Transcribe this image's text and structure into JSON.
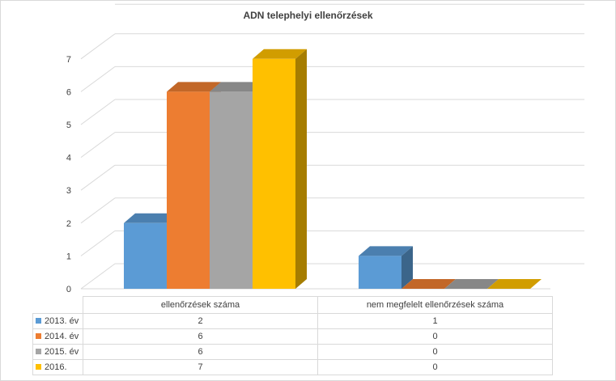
{
  "chart_data": {
    "type": "bar",
    "title": "ADN telephelyi ellenőrzések",
    "categories": [
      "ellenőrzések száma",
      "nem megfelelt ellenőrzések száma"
    ],
    "series": [
      {
        "name": "2013. év",
        "values": [
          2,
          1
        ],
        "color": "#5b9bd5"
      },
      {
        "name": "2014. év",
        "values": [
          6,
          0
        ],
        "color": "#ed7d31"
      },
      {
        "name": "2015. év",
        "values": [
          6,
          0
        ],
        "color": "#a5a5a5"
      },
      {
        "name": "2016.",
        "values": [
          7,
          0
        ],
        "color": "#ffc000"
      }
    ],
    "ylim": [
      0,
      7
    ],
    "yticks": [
      "0",
      "1",
      "2",
      "3",
      "4",
      "5",
      "6",
      "7"
    ],
    "grid": true,
    "legend": "data table below chart",
    "style": "3d-clustered-column"
  }
}
